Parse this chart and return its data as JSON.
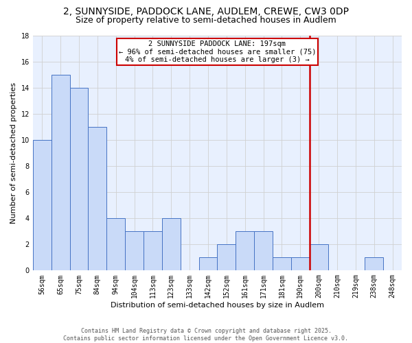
{
  "title": "2, SUNNYSIDE, PADDOCK LANE, AUDLEM, CREWE, CW3 0DP",
  "subtitle": "Size of property relative to semi-detached houses in Audlem",
  "xlabel": "Distribution of semi-detached houses by size in Audlem",
  "ylabel": "Number of semi-detached properties",
  "categories": [
    "56sqm",
    "65sqm",
    "75sqm",
    "84sqm",
    "94sqm",
    "104sqm",
    "113sqm",
    "123sqm",
    "133sqm",
    "142sqm",
    "152sqm",
    "161sqm",
    "171sqm",
    "181sqm",
    "190sqm",
    "200sqm",
    "210sqm",
    "219sqm",
    "238sqm",
    "248sqm"
  ],
  "values": [
    10,
    15,
    14,
    11,
    4,
    3,
    3,
    4,
    0,
    1,
    2,
    3,
    3,
    1,
    1,
    2,
    0,
    0,
    1,
    0
  ],
  "bar_color": "#c9daf8",
  "bar_edge_color": "#4472c4",
  "grid_color": "#d0d0d0",
  "background_color": "#e8f0fe",
  "vline_x": 14.5,
  "vline_color": "#cc0000",
  "annotation_title": "2 SUNNYSIDE PADDOCK LANE: 197sqm",
  "annotation_line1": "← 96% of semi-detached houses are smaller (75)",
  "annotation_line2": "4% of semi-detached houses are larger (3) →",
  "annotation_box_color": "#cc0000",
  "ylim": [
    0,
    18
  ],
  "yticks": [
    0,
    2,
    4,
    6,
    8,
    10,
    12,
    14,
    16,
    18
  ],
  "footer1": "Contains HM Land Registry data © Crown copyright and database right 2025.",
  "footer2": "Contains public sector information licensed under the Open Government Licence v3.0.",
  "title_fontsize": 10,
  "subtitle_fontsize": 9,
  "axis_label_fontsize": 8,
  "tick_fontsize": 7,
  "annotation_fontsize": 7.5,
  "footer_fontsize": 6
}
